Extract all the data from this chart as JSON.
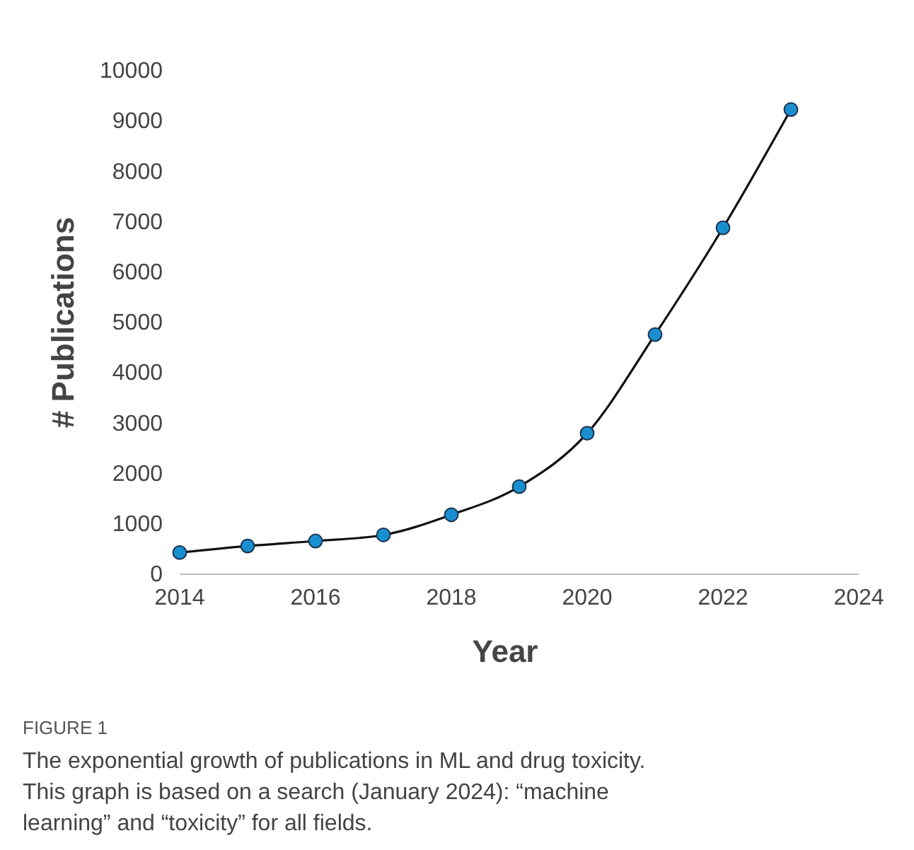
{
  "chart_data": {
    "type": "line",
    "xlabel": "Year",
    "ylabel": "# Publications",
    "x": [
      2014,
      2015,
      2016,
      2017,
      2018,
      2019,
      2020,
      2021,
      2022,
      2023
    ],
    "series": [
      {
        "color": "#1a8fd0",
        "values": [
          430,
          560,
          660,
          780,
          1180,
          1740,
          2800,
          4760,
          6880,
          9230
        ]
      }
    ],
    "xlim": [
      2014,
      2024
    ],
    "xticks": [
      2014,
      2016,
      2018,
      2020,
      2022,
      2024
    ],
    "ylim": [
      0,
      10000
    ],
    "yticks": [
      0,
      1000,
      2000,
      3000,
      4000,
      5000,
      6000,
      7000,
      8000,
      9000,
      10000
    ],
    "marker": "circle",
    "line_style": "solid",
    "grid": false,
    "annotations": [
      "FIGURE 1",
      "The exponential growth of publications in ML and drug toxicity.",
      "This graph is based on a search (January 2024): “machine",
      "learning” and “toxicity” for all fields."
    ]
  }
}
